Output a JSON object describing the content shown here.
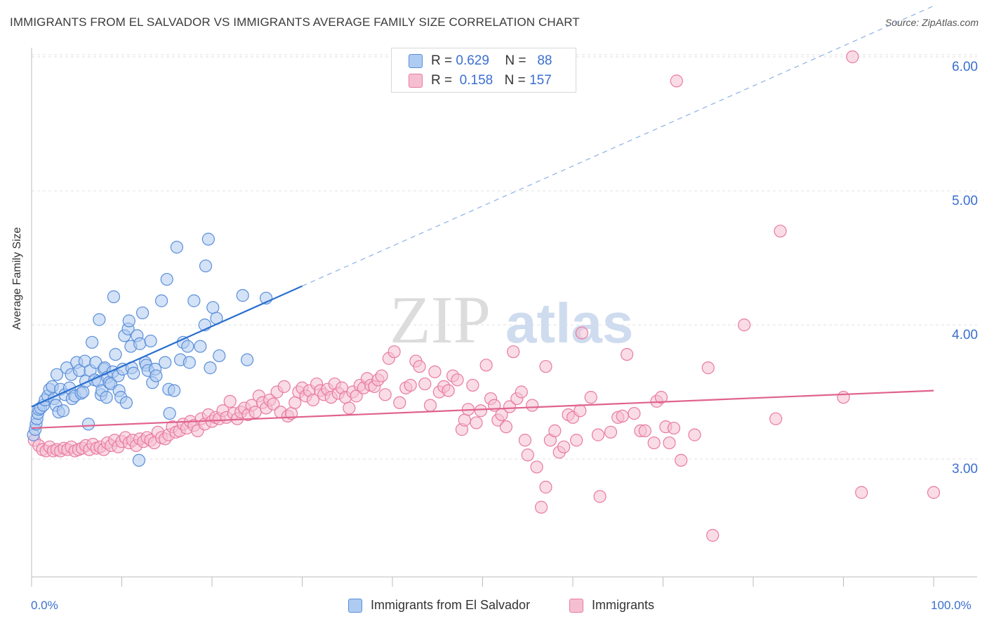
{
  "title": "IMMIGRANTS FROM EL SALVADOR VS IMMIGRANTS AVERAGE FAMILY SIZE CORRELATION CHART",
  "source": "Source: ZipAtlas.com",
  "watermark": {
    "zip": "ZIP",
    "atlas": "atlas"
  },
  "colors": {
    "blue": "#5b8fd9",
    "blue_fill": "#aecbf1",
    "pink": "#e87aa0",
    "pink_fill": "#f6bfd1",
    "axis_text": "#3a6fd0"
  },
  "legend_top": {
    "blue": {
      "r_label": "R =",
      "r_value": "0.629",
      "n_label": "N =",
      "n_value": "88"
    },
    "pink": {
      "r_label": "R =",
      "r_value": "0.158",
      "n_label": "N =",
      "n_value": "157"
    }
  },
  "bottom_legend": {
    "blue": "Immigrants from El Salvador",
    "pink": "Immigrants"
  },
  "chart_data": {
    "type": "scatter",
    "ylabel": "Average Family Size",
    "xlim": [
      0,
      100
    ],
    "ylim": [
      2.0,
      6.1
    ],
    "x_tick_labels": [
      "0.0%",
      "100.0%"
    ],
    "y_ticks": [
      3.0,
      4.0,
      5.0,
      6.0
    ],
    "y_tick_labels": [
      "3.00",
      "4.00",
      "5.00",
      "6.00"
    ],
    "grid": true,
    "series": [
      {
        "name": "Immigrants from El Salvador",
        "color": "#5b8fd9",
        "trend": {
          "x0": 0,
          "y0": 3.39,
          "x1": 30,
          "y1": 4.29,
          "dashed_to_x": 100,
          "dashed_to_y": 6.38
        },
        "points": [
          [
            0.2,
            3.18
          ],
          [
            0.4,
            3.22
          ],
          [
            0.5,
            3.26
          ],
          [
            0.6,
            3.3
          ],
          [
            0.7,
            3.34
          ],
          [
            0.8,
            3.37
          ],
          [
            1.0,
            3.38
          ],
          [
            1.3,
            3.4
          ],
          [
            1.5,
            3.44
          ],
          [
            1.8,
            3.47
          ],
          [
            2.0,
            3.52
          ],
          [
            2.3,
            3.54
          ],
          [
            2.5,
            3.45
          ],
          [
            2.7,
            3.4
          ],
          [
            2.8,
            3.63
          ],
          [
            3.0,
            3.35
          ],
          [
            3.2,
            3.52
          ],
          [
            3.5,
            3.36
          ],
          [
            3.7,
            3.48
          ],
          [
            3.9,
            3.68
          ],
          [
            4.2,
            3.53
          ],
          [
            4.4,
            3.63
          ],
          [
            4.5,
            3.45
          ],
          [
            4.8,
            3.47
          ],
          [
            5.0,
            3.72
          ],
          [
            5.3,
            3.66
          ],
          [
            5.5,
            3.49
          ],
          [
            5.7,
            3.5
          ],
          [
            5.9,
            3.73
          ],
          [
            6.0,
            3.58
          ],
          [
            6.3,
            3.26
          ],
          [
            6.5,
            3.66
          ],
          [
            6.7,
            3.87
          ],
          [
            7.0,
            3.59
          ],
          [
            7.1,
            3.72
          ],
          [
            7.4,
            3.58
          ],
          [
            7.5,
            4.04
          ],
          [
            7.7,
            3.48
          ],
          [
            7.8,
            3.51
          ],
          [
            8.0,
            3.67
          ],
          [
            8.1,
            3.68
          ],
          [
            8.3,
            3.46
          ],
          [
            8.4,
            3.61
          ],
          [
            8.6,
            3.57
          ],
          [
            8.8,
            3.56
          ],
          [
            9.0,
            3.65
          ],
          [
            9.1,
            4.21
          ],
          [
            9.3,
            3.78
          ],
          [
            9.6,
            3.62
          ],
          [
            9.7,
            3.51
          ],
          [
            9.9,
            3.46
          ],
          [
            10.1,
            3.67
          ],
          [
            10.3,
            3.92
          ],
          [
            10.5,
            3.42
          ],
          [
            10.7,
            3.97
          ],
          [
            10.8,
            4.03
          ],
          [
            11.0,
            3.84
          ],
          [
            11.1,
            3.68
          ],
          [
            11.3,
            3.64
          ],
          [
            11.7,
            3.92
          ],
          [
            11.9,
            2.99
          ],
          [
            12.0,
            3.86
          ],
          [
            12.3,
            4.09
          ],
          [
            12.6,
            3.72
          ],
          [
            12.7,
            3.7
          ],
          [
            12.9,
            3.66
          ],
          [
            13.2,
            3.88
          ],
          [
            13.4,
            3.57
          ],
          [
            13.7,
            3.67
          ],
          [
            13.8,
            3.62
          ],
          [
            14.4,
            4.18
          ],
          [
            14.8,
            3.72
          ],
          [
            15.0,
            4.34
          ],
          [
            15.2,
            3.52
          ],
          [
            15.3,
            3.34
          ],
          [
            15.8,
            3.51
          ],
          [
            16.1,
            4.58
          ],
          [
            16.5,
            3.74
          ],
          [
            16.8,
            3.87
          ],
          [
            17.3,
            3.84
          ],
          [
            17.5,
            3.72
          ],
          [
            18.0,
            4.18
          ],
          [
            18.7,
            3.84
          ],
          [
            19.2,
            4.0
          ],
          [
            19.3,
            4.44
          ],
          [
            19.6,
            4.64
          ],
          [
            19.8,
            3.68
          ],
          [
            20.1,
            4.13
          ],
          [
            20.5,
            4.05
          ],
          [
            20.8,
            3.77
          ],
          [
            23.4,
            4.22
          ],
          [
            23.9,
            3.74
          ],
          [
            26.0,
            4.2
          ]
        ]
      },
      {
        "name": "Immigrants",
        "color": "#e87aa0",
        "trend": {
          "x0": 0,
          "y0": 3.23,
          "x1": 100,
          "y1": 3.51
        },
        "points": [
          [
            0.3,
            3.14
          ],
          [
            0.8,
            3.1
          ],
          [
            1.2,
            3.07
          ],
          [
            1.6,
            3.06
          ],
          [
            2.0,
            3.09
          ],
          [
            2.4,
            3.06
          ],
          [
            2.8,
            3.07
          ],
          [
            3.2,
            3.06
          ],
          [
            3.6,
            3.08
          ],
          [
            4.0,
            3.07
          ],
          [
            4.4,
            3.09
          ],
          [
            4.8,
            3.06
          ],
          [
            5.2,
            3.07
          ],
          [
            5.6,
            3.08
          ],
          [
            6.0,
            3.1
          ],
          [
            6.4,
            3.07
          ],
          [
            6.8,
            3.11
          ],
          [
            7.2,
            3.08
          ],
          [
            7.6,
            3.09
          ],
          [
            8.0,
            3.07
          ],
          [
            8.4,
            3.12
          ],
          [
            8.8,
            3.1
          ],
          [
            9.2,
            3.14
          ],
          [
            9.6,
            3.09
          ],
          [
            10.0,
            3.13
          ],
          [
            10.4,
            3.16
          ],
          [
            10.8,
            3.12
          ],
          [
            11.2,
            3.14
          ],
          [
            11.6,
            3.1
          ],
          [
            12.0,
            3.15
          ],
          [
            12.4,
            3.13
          ],
          [
            12.8,
            3.16
          ],
          [
            13.2,
            3.14
          ],
          [
            13.6,
            3.12
          ],
          [
            14.0,
            3.2
          ],
          [
            14.4,
            3.16
          ],
          [
            14.8,
            3.15
          ],
          [
            15.2,
            3.18
          ],
          [
            15.6,
            3.24
          ],
          [
            16.0,
            3.2
          ],
          [
            16.4,
            3.21
          ],
          [
            16.8,
            3.26
          ],
          [
            17.2,
            3.23
          ],
          [
            17.6,
            3.28
          ],
          [
            18.0,
            3.25
          ],
          [
            18.4,
            3.21
          ],
          [
            18.8,
            3.3
          ],
          [
            19.2,
            3.26
          ],
          [
            19.6,
            3.33
          ],
          [
            20.0,
            3.28
          ],
          [
            20.4,
            3.31
          ],
          [
            20.8,
            3.3
          ],
          [
            21.2,
            3.36
          ],
          [
            21.6,
            3.31
          ],
          [
            22.0,
            3.43
          ],
          [
            22.4,
            3.34
          ],
          [
            22.8,
            3.3
          ],
          [
            23.2,
            3.35
          ],
          [
            23.6,
            3.38
          ],
          [
            24.0,
            3.33
          ],
          [
            24.4,
            3.4
          ],
          [
            24.8,
            3.35
          ],
          [
            25.2,
            3.47
          ],
          [
            25.6,
            3.42
          ],
          [
            26.0,
            3.38
          ],
          [
            26.4,
            3.44
          ],
          [
            26.8,
            3.41
          ],
          [
            27.2,
            3.5
          ],
          [
            27.6,
            3.35
          ],
          [
            28.0,
            3.54
          ],
          [
            28.4,
            3.32
          ],
          [
            28.8,
            3.34
          ],
          [
            29.2,
            3.42
          ],
          [
            29.6,
            3.5
          ],
          [
            30.0,
            3.53
          ],
          [
            30.4,
            3.47
          ],
          [
            30.8,
            3.51
          ],
          [
            31.2,
            3.44
          ],
          [
            31.6,
            3.56
          ],
          [
            32.0,
            3.51
          ],
          [
            32.4,
            3.48
          ],
          [
            32.8,
            3.52
          ],
          [
            33.2,
            3.46
          ],
          [
            33.6,
            3.56
          ],
          [
            34.0,
            3.49
          ],
          [
            34.4,
            3.53
          ],
          [
            34.8,
            3.46
          ],
          [
            35.2,
            3.38
          ],
          [
            35.6,
            3.5
          ],
          [
            36.0,
            3.47
          ],
          [
            36.4,
            3.55
          ],
          [
            36.8,
            3.53
          ],
          [
            37.2,
            3.6
          ],
          [
            37.6,
            3.55
          ],
          [
            38.0,
            3.54
          ],
          [
            38.4,
            3.59
          ],
          [
            38.8,
            3.62
          ],
          [
            39.2,
            3.48
          ],
          [
            39.6,
            3.75
          ],
          [
            40.2,
            3.8
          ],
          [
            40.8,
            3.42
          ],
          [
            41.5,
            3.53
          ],
          [
            42.0,
            3.55
          ],
          [
            42.6,
            3.73
          ],
          [
            43.0,
            3.69
          ],
          [
            43.6,
            3.56
          ],
          [
            44.2,
            3.4
          ],
          [
            44.7,
            3.65
          ],
          [
            45.2,
            3.5
          ],
          [
            45.7,
            3.54
          ],
          [
            46.2,
            3.51
          ],
          [
            46.7,
            3.62
          ],
          [
            47.2,
            3.59
          ],
          [
            47.7,
            3.22
          ],
          [
            48.0,
            3.29
          ],
          [
            48.4,
            3.37
          ],
          [
            48.9,
            3.55
          ],
          [
            49.3,
            3.27
          ],
          [
            49.8,
            3.36
          ],
          [
            50.4,
            3.7
          ],
          [
            50.9,
            3.45
          ],
          [
            51.3,
            3.4
          ],
          [
            51.7,
            3.29
          ],
          [
            52.1,
            3.33
          ],
          [
            52.6,
            3.24
          ],
          [
            53.0,
            3.39
          ],
          [
            53.4,
            3.8
          ],
          [
            53.8,
            3.45
          ],
          [
            54.3,
            3.5
          ],
          [
            54.7,
            3.14
          ],
          [
            55.0,
            3.03
          ],
          [
            55.5,
            3.4
          ],
          [
            56.0,
            2.94
          ],
          [
            56.5,
            2.64
          ],
          [
            57.0,
            3.69
          ],
          [
            57.0,
            2.79
          ],
          [
            57.5,
            3.14
          ],
          [
            58.0,
            3.21
          ],
          [
            58.5,
            3.05
          ],
          [
            59.0,
            3.09
          ],
          [
            59.5,
            3.33
          ],
          [
            60.0,
            3.31
          ],
          [
            60.4,
            3.14
          ],
          [
            60.8,
            3.36
          ],
          [
            61.0,
            3.94
          ],
          [
            62.0,
            3.46
          ],
          [
            62.8,
            3.18
          ],
          [
            63.0,
            2.72
          ],
          [
            64.2,
            3.2
          ],
          [
            65.0,
            3.31
          ],
          [
            65.5,
            3.32
          ],
          [
            66.0,
            3.78
          ],
          [
            66.8,
            3.34
          ],
          [
            67.5,
            3.21
          ],
          [
            68.0,
            3.21
          ],
          [
            69.0,
            3.12
          ],
          [
            69.3,
            3.43
          ],
          [
            69.8,
            3.46
          ],
          [
            70.3,
            3.24
          ],
          [
            70.7,
            3.12
          ],
          [
            71.2,
            3.23
          ],
          [
            72.0,
            2.99
          ],
          [
            73.5,
            3.18
          ],
          [
            75.0,
            3.68
          ],
          [
            75.5,
            2.43
          ],
          [
            79.0,
            4.0
          ],
          [
            82.5,
            3.3
          ],
          [
            83.0,
            4.7
          ],
          [
            90.0,
            3.46
          ],
          [
            92.0,
            2.75
          ],
          [
            100.0,
            2.75
          ],
          [
            91.0,
            6.0
          ],
          [
            71.5,
            5.82
          ]
        ]
      }
    ]
  }
}
